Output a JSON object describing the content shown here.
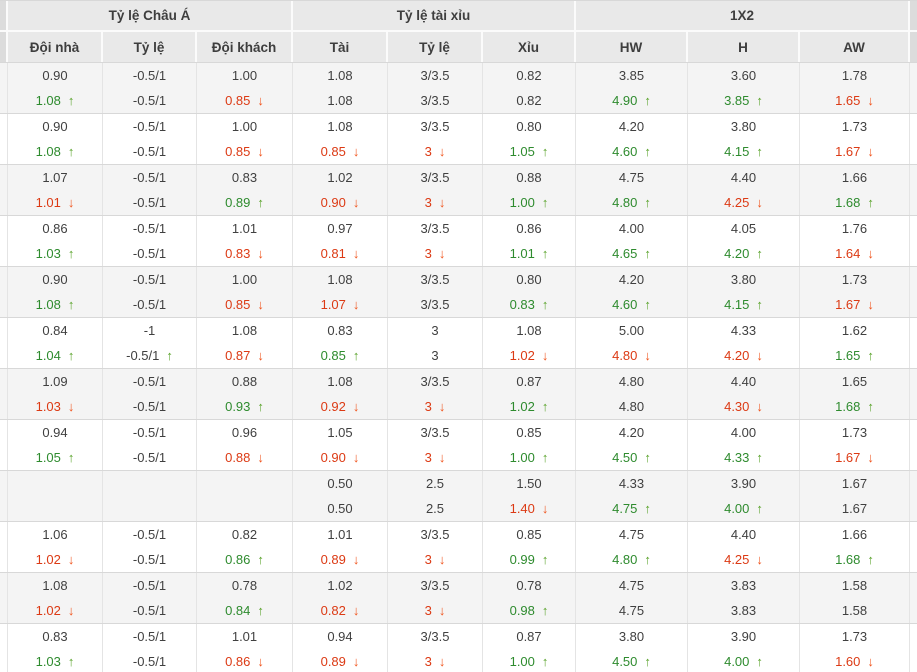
{
  "header": {
    "groups": [
      {
        "label": "Tỷ lệ Châu Á"
      },
      {
        "label": "Tỷ lệ tài xỉu"
      },
      {
        "label": "1X2"
      }
    ],
    "columns": [
      "Đội nhà",
      "Tỷ lệ",
      "Đội khách",
      "Tài",
      "Tỷ lệ",
      "Xỉu",
      "HW",
      "H",
      "AW"
    ]
  },
  "icons": {
    "up": "↑",
    "down": "↓"
  },
  "colors": {
    "green_text": "#2e8b2e",
    "red_text": "#dc3a14",
    "green_arrow": "#5aa32b",
    "red_arrow": "#f0551e",
    "header_bg": "#e9e9e9",
    "alt_row_bg": "#f4f4f4"
  },
  "column_keys": [
    "home",
    "handicap",
    "away",
    "over",
    "ou-ratio",
    "under",
    "hw",
    "h",
    "aw"
  ],
  "blocks": [
    {
      "rows": [
        [
          [
            "0.90",
            "",
            ""
          ],
          [
            "-0.5/1",
            "",
            ""
          ],
          [
            "1.00",
            "",
            ""
          ],
          [
            "1.08",
            "",
            ""
          ],
          [
            "3/3.5",
            "",
            ""
          ],
          [
            "0.82",
            "",
            ""
          ],
          [
            "3.85",
            "",
            ""
          ],
          [
            "3.60",
            "",
            ""
          ],
          [
            "1.78",
            "",
            ""
          ]
        ],
        [
          [
            "1.08",
            "g",
            "u"
          ],
          [
            "-0.5/1",
            "",
            ""
          ],
          [
            "0.85",
            "r",
            "d"
          ],
          [
            "1.08",
            "",
            ""
          ],
          [
            "3/3.5",
            "",
            ""
          ],
          [
            "0.82",
            "",
            ""
          ],
          [
            "4.90",
            "g",
            "u"
          ],
          [
            "3.85",
            "g",
            "u"
          ],
          [
            "1.65",
            "r",
            "d"
          ]
        ]
      ]
    },
    {
      "rows": [
        [
          [
            "0.90",
            "",
            ""
          ],
          [
            "-0.5/1",
            "",
            ""
          ],
          [
            "1.00",
            "",
            ""
          ],
          [
            "1.08",
            "",
            ""
          ],
          [
            "3/3.5",
            "",
            ""
          ],
          [
            "0.80",
            "",
            ""
          ],
          [
            "4.20",
            "",
            ""
          ],
          [
            "3.80",
            "",
            ""
          ],
          [
            "1.73",
            "",
            ""
          ]
        ],
        [
          [
            "1.08",
            "g",
            "u"
          ],
          [
            "-0.5/1",
            "",
            ""
          ],
          [
            "0.85",
            "r",
            "d"
          ],
          [
            "0.85",
            "r",
            "d"
          ],
          [
            "3",
            "r",
            "d"
          ],
          [
            "1.05",
            "g",
            "u"
          ],
          [
            "4.60",
            "g",
            "u"
          ],
          [
            "4.15",
            "g",
            "u"
          ],
          [
            "1.67",
            "r",
            "d"
          ]
        ]
      ]
    },
    {
      "rows": [
        [
          [
            "1.07",
            "",
            ""
          ],
          [
            "-0.5/1",
            "",
            ""
          ],
          [
            "0.83",
            "",
            ""
          ],
          [
            "1.02",
            "",
            ""
          ],
          [
            "3/3.5",
            "",
            ""
          ],
          [
            "0.88",
            "",
            ""
          ],
          [
            "4.75",
            "",
            ""
          ],
          [
            "4.40",
            "",
            ""
          ],
          [
            "1.66",
            "",
            ""
          ]
        ],
        [
          [
            "1.01",
            "r",
            "d"
          ],
          [
            "-0.5/1",
            "",
            ""
          ],
          [
            "0.89",
            "g",
            "u"
          ],
          [
            "0.90",
            "r",
            "d"
          ],
          [
            "3",
            "r",
            "d"
          ],
          [
            "1.00",
            "g",
            "u"
          ],
          [
            "4.80",
            "g",
            "u"
          ],
          [
            "4.25",
            "r",
            "d"
          ],
          [
            "1.68",
            "g",
            "u"
          ]
        ]
      ]
    },
    {
      "rows": [
        [
          [
            "0.86",
            "",
            ""
          ],
          [
            "-0.5/1",
            "",
            ""
          ],
          [
            "1.01",
            "",
            ""
          ],
          [
            "0.97",
            "",
            ""
          ],
          [
            "3/3.5",
            "",
            ""
          ],
          [
            "0.86",
            "",
            ""
          ],
          [
            "4.00",
            "",
            ""
          ],
          [
            "4.05",
            "",
            ""
          ],
          [
            "1.76",
            "",
            ""
          ]
        ],
        [
          [
            "1.03",
            "g",
            "u"
          ],
          [
            "-0.5/1",
            "",
            ""
          ],
          [
            "0.83",
            "r",
            "d"
          ],
          [
            "0.81",
            "r",
            "d"
          ],
          [
            "3",
            "r",
            "d"
          ],
          [
            "1.01",
            "g",
            "u"
          ],
          [
            "4.65",
            "g",
            "u"
          ],
          [
            "4.20",
            "g",
            "u"
          ],
          [
            "1.64",
            "r",
            "d"
          ]
        ]
      ]
    },
    {
      "rows": [
        [
          [
            "0.90",
            "",
            ""
          ],
          [
            "-0.5/1",
            "",
            ""
          ],
          [
            "1.00",
            "",
            ""
          ],
          [
            "1.08",
            "",
            ""
          ],
          [
            "3/3.5",
            "",
            ""
          ],
          [
            "0.80",
            "",
            ""
          ],
          [
            "4.20",
            "",
            ""
          ],
          [
            "3.80",
            "",
            ""
          ],
          [
            "1.73",
            "",
            ""
          ]
        ],
        [
          [
            "1.08",
            "g",
            "u"
          ],
          [
            "-0.5/1",
            "",
            ""
          ],
          [
            "0.85",
            "r",
            "d"
          ],
          [
            "1.07",
            "r",
            "d"
          ],
          [
            "3/3.5",
            "",
            ""
          ],
          [
            "0.83",
            "g",
            "u"
          ],
          [
            "4.60",
            "g",
            "u"
          ],
          [
            "4.15",
            "g",
            "u"
          ],
          [
            "1.67",
            "r",
            "d"
          ]
        ]
      ]
    },
    {
      "rows": [
        [
          [
            "0.84",
            "",
            ""
          ],
          [
            "-1",
            "",
            ""
          ],
          [
            "1.08",
            "",
            ""
          ],
          [
            "0.83",
            "",
            ""
          ],
          [
            "3",
            "",
            ""
          ],
          [
            "1.08",
            "",
            ""
          ],
          [
            "5.00",
            "",
            ""
          ],
          [
            "4.33",
            "",
            ""
          ],
          [
            "1.62",
            "",
            ""
          ]
        ],
        [
          [
            "1.04",
            "g",
            "u"
          ],
          [
            "-0.5/1",
            "",
            "u"
          ],
          [
            "0.87",
            "r",
            "d"
          ],
          [
            "0.85",
            "g",
            "u"
          ],
          [
            "3",
            "",
            ""
          ],
          [
            "1.02",
            "r",
            "d"
          ],
          [
            "4.80",
            "r",
            "d"
          ],
          [
            "4.20",
            "r",
            "d"
          ],
          [
            "1.65",
            "g",
            "u"
          ]
        ]
      ]
    },
    {
      "rows": [
        [
          [
            "1.09",
            "",
            ""
          ],
          [
            "-0.5/1",
            "",
            ""
          ],
          [
            "0.88",
            "",
            ""
          ],
          [
            "1.08",
            "",
            ""
          ],
          [
            "3/3.5",
            "",
            ""
          ],
          [
            "0.87",
            "",
            ""
          ],
          [
            "4.80",
            "",
            ""
          ],
          [
            "4.40",
            "",
            ""
          ],
          [
            "1.65",
            "",
            ""
          ]
        ],
        [
          [
            "1.03",
            "r",
            "d"
          ],
          [
            "-0.5/1",
            "",
            ""
          ],
          [
            "0.93",
            "g",
            "u"
          ],
          [
            "0.92",
            "r",
            "d"
          ],
          [
            "3",
            "r",
            "d"
          ],
          [
            "1.02",
            "g",
            "u"
          ],
          [
            "4.80",
            "",
            ""
          ],
          [
            "4.30",
            "r",
            "d"
          ],
          [
            "1.68",
            "g",
            "u"
          ]
        ]
      ]
    },
    {
      "rows": [
        [
          [
            "0.94",
            "",
            ""
          ],
          [
            "-0.5/1",
            "",
            ""
          ],
          [
            "0.96",
            "",
            ""
          ],
          [
            "1.05",
            "",
            ""
          ],
          [
            "3/3.5",
            "",
            ""
          ],
          [
            "0.85",
            "",
            ""
          ],
          [
            "4.20",
            "",
            ""
          ],
          [
            "4.00",
            "",
            ""
          ],
          [
            "1.73",
            "",
            ""
          ]
        ],
        [
          [
            "1.05",
            "g",
            "u"
          ],
          [
            "-0.5/1",
            "",
            ""
          ],
          [
            "0.88",
            "r",
            "d"
          ],
          [
            "0.90",
            "r",
            "d"
          ],
          [
            "3",
            "r",
            "d"
          ],
          [
            "1.00",
            "g",
            "u"
          ],
          [
            "4.50",
            "g",
            "u"
          ],
          [
            "4.33",
            "g",
            "u"
          ],
          [
            "1.67",
            "r",
            "d"
          ]
        ]
      ]
    },
    {
      "rows": [
        [
          [
            "",
            "",
            ""
          ],
          [
            "",
            "",
            ""
          ],
          [
            "",
            "",
            ""
          ],
          [
            "0.50",
            "",
            ""
          ],
          [
            "2.5",
            "",
            ""
          ],
          [
            "1.50",
            "",
            ""
          ],
          [
            "4.33",
            "",
            ""
          ],
          [
            "3.90",
            "",
            ""
          ],
          [
            "1.67",
            "",
            ""
          ]
        ],
        [
          [
            "",
            "",
            ""
          ],
          [
            "",
            "",
            ""
          ],
          [
            "",
            "",
            ""
          ],
          [
            "0.50",
            "",
            ""
          ],
          [
            "2.5",
            "",
            ""
          ],
          [
            "1.40",
            "r",
            "d"
          ],
          [
            "4.75",
            "g",
            "u"
          ],
          [
            "4.00",
            "g",
            "u"
          ],
          [
            "1.67",
            "",
            ""
          ]
        ]
      ]
    },
    {
      "rows": [
        [
          [
            "1.06",
            "",
            ""
          ],
          [
            "-0.5/1",
            "",
            ""
          ],
          [
            "0.82",
            "",
            ""
          ],
          [
            "1.01",
            "",
            ""
          ],
          [
            "3/3.5",
            "",
            ""
          ],
          [
            "0.85",
            "",
            ""
          ],
          [
            "4.75",
            "",
            ""
          ],
          [
            "4.40",
            "",
            ""
          ],
          [
            "1.66",
            "",
            ""
          ]
        ],
        [
          [
            "1.02",
            "r",
            "d"
          ],
          [
            "-0.5/1",
            "",
            ""
          ],
          [
            "0.86",
            "g",
            "u"
          ],
          [
            "0.89",
            "r",
            "d"
          ],
          [
            "3",
            "r",
            "d"
          ],
          [
            "0.99",
            "g",
            "u"
          ],
          [
            "4.80",
            "g",
            "u"
          ],
          [
            "4.25",
            "r",
            "d"
          ],
          [
            "1.68",
            "g",
            "u"
          ]
        ]
      ]
    },
    {
      "rows": [
        [
          [
            "1.08",
            "",
            ""
          ],
          [
            "-0.5/1",
            "",
            ""
          ],
          [
            "0.78",
            "",
            ""
          ],
          [
            "1.02",
            "",
            ""
          ],
          [
            "3/3.5",
            "",
            ""
          ],
          [
            "0.78",
            "",
            ""
          ],
          [
            "4.75",
            "",
            ""
          ],
          [
            "3.83",
            "",
            ""
          ],
          [
            "1.58",
            "",
            ""
          ]
        ],
        [
          [
            "1.02",
            "r",
            "d"
          ],
          [
            "-0.5/1",
            "",
            ""
          ],
          [
            "0.84",
            "g",
            "u"
          ],
          [
            "0.82",
            "r",
            "d"
          ],
          [
            "3",
            "r",
            "d"
          ],
          [
            "0.98",
            "g",
            "u"
          ],
          [
            "4.75",
            "",
            ""
          ],
          [
            "3.83",
            "",
            ""
          ],
          [
            "1.58",
            "",
            ""
          ]
        ]
      ]
    },
    {
      "rows": [
        [
          [
            "0.83",
            "",
            ""
          ],
          [
            "-0.5/1",
            "",
            ""
          ],
          [
            "1.01",
            "",
            ""
          ],
          [
            "0.94",
            "",
            ""
          ],
          [
            "3/3.5",
            "",
            ""
          ],
          [
            "0.87",
            "",
            ""
          ],
          [
            "3.80",
            "",
            ""
          ],
          [
            "3.90",
            "",
            ""
          ],
          [
            "1.73",
            "",
            ""
          ]
        ],
        [
          [
            "1.03",
            "g",
            "u"
          ],
          [
            "-0.5/1",
            "",
            ""
          ],
          [
            "0.86",
            "r",
            "d"
          ],
          [
            "0.89",
            "r",
            "d"
          ],
          [
            "3",
            "r",
            "d"
          ],
          [
            "1.00",
            "g",
            "u"
          ],
          [
            "4.50",
            "g",
            "u"
          ],
          [
            "4.00",
            "g",
            "u"
          ],
          [
            "1.60",
            "r",
            "d"
          ]
        ]
      ]
    }
  ]
}
